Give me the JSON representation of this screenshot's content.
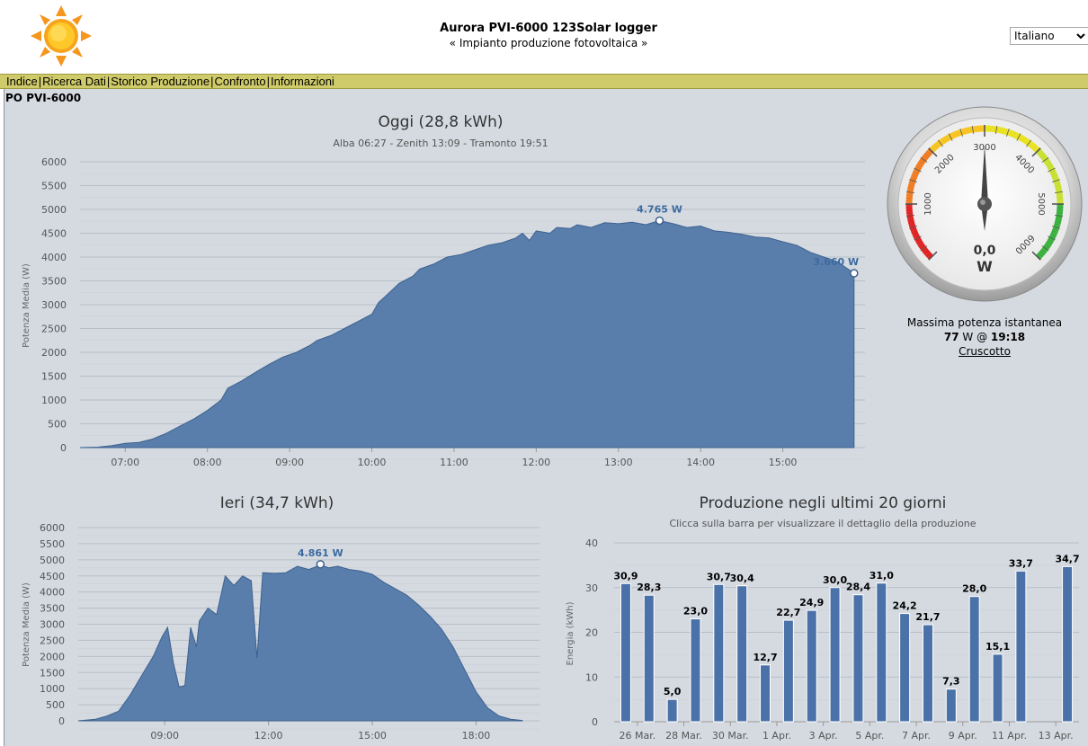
{
  "header": {
    "title": "Aurora PVI-6000 123Solar logger",
    "subtitle": "« Impianto produzione fotovoltaica »",
    "language": "Italiano"
  },
  "menu": {
    "items": [
      "Indice",
      "Ricerca Dati",
      "Storico Produzione",
      "Confronto",
      "Informazioni"
    ]
  },
  "section_title": "PO PVI-6000",
  "gauge": {
    "ticks": [
      "1000",
      "2000",
      "3000",
      "4000",
      "5000",
      "6000"
    ],
    "value": "0,0",
    "unit": "W",
    "value_w": 0,
    "max_w": 6000,
    "max_label": "Massima potenza istantanea",
    "max_value": "77",
    "max_unit": "W @",
    "max_time": "19:18",
    "link": "Cruscotto"
  },
  "chart_data": [
    {
      "type": "area",
      "title": "Oggi (28,8 kWh)",
      "subtitle": "Alba 06:27 - Zenith 13:09 - Tramonto 19:51",
      "ylabel": "Potenza Media (W)",
      "xlabel": "",
      "ylim": [
        0,
        6000
      ],
      "yticks": [
        "0",
        "500",
        "1000",
        "1500",
        "2000",
        "2500",
        "3000",
        "3500",
        "4000",
        "4500",
        "5000",
        "5500",
        "6000"
      ],
      "xticks": [
        "07:00",
        "08:00",
        "09:00",
        "10:00",
        "11:00",
        "12:00",
        "13:00",
        "14:00",
        "15:00"
      ],
      "x_start": "06:27",
      "x_end": "16:00",
      "points": [
        [
          "06:27",
          0
        ],
        [
          "06:40",
          10
        ],
        [
          "06:50",
          40
        ],
        [
          "07:00",
          90
        ],
        [
          "07:10",
          110
        ],
        [
          "07:20",
          180
        ],
        [
          "07:30",
          300
        ],
        [
          "07:40",
          450
        ],
        [
          "07:50",
          600
        ],
        [
          "08:00",
          780
        ],
        [
          "08:10",
          1000
        ],
        [
          "08:15",
          1250
        ],
        [
          "08:25",
          1400
        ],
        [
          "08:35",
          1580
        ],
        [
          "08:45",
          1750
        ],
        [
          "08:55",
          1900
        ],
        [
          "09:05",
          2000
        ],
        [
          "09:15",
          2150
        ],
        [
          "09:20",
          2250
        ],
        [
          "09:30",
          2350
        ],
        [
          "09:40",
          2500
        ],
        [
          "09:50",
          2650
        ],
        [
          "10:00",
          2800
        ],
        [
          "10:05",
          3050
        ],
        [
          "10:10",
          3180
        ],
        [
          "10:20",
          3450
        ],
        [
          "10:30",
          3600
        ],
        [
          "10:35",
          3750
        ],
        [
          "10:45",
          3850
        ],
        [
          "10:55",
          4000
        ],
        [
          "11:05",
          4050
        ],
        [
          "11:15",
          4150
        ],
        [
          "11:25",
          4250
        ],
        [
          "11:35",
          4300
        ],
        [
          "11:45",
          4400
        ],
        [
          "11:50",
          4500
        ],
        [
          "11:55",
          4350
        ],
        [
          "12:00",
          4550
        ],
        [
          "12:10",
          4500
        ],
        [
          "12:15",
          4620
        ],
        [
          "12:25",
          4600
        ],
        [
          "12:30",
          4680
        ],
        [
          "12:40",
          4620
        ],
        [
          "12:50",
          4720
        ],
        [
          "13:00",
          4700
        ],
        [
          "13:10",
          4730
        ],
        [
          "13:20",
          4680
        ],
        [
          "13:30",
          4765
        ],
        [
          "13:40",
          4700
        ],
        [
          "13:50",
          4620
        ],
        [
          "14:00",
          4650
        ],
        [
          "14:10",
          4550
        ],
        [
          "14:20",
          4520
        ],
        [
          "14:30",
          4480
        ],
        [
          "14:40",
          4420
        ],
        [
          "14:50",
          4400
        ],
        [
          "15:00",
          4320
        ],
        [
          "15:10",
          4250
        ],
        [
          "15:20",
          4100
        ],
        [
          "15:30",
          4000
        ],
        [
          "15:40",
          3900
        ],
        [
          "15:50",
          3700
        ],
        [
          "15:52",
          3660
        ]
      ],
      "highlights": [
        {
          "time": "13:30",
          "value": 4765,
          "label": "4.765 W"
        },
        {
          "time": "15:52",
          "value": 3660,
          "label": "3.660 W"
        }
      ]
    },
    {
      "type": "area",
      "title": "Ieri (34,7 kWh)",
      "ylabel": "Potenza Media (W)",
      "xlabel": "",
      "ylim": [
        0,
        6000
      ],
      "yticks": [
        "0",
        "500",
        "1000",
        "1500",
        "2000",
        "2500",
        "3000",
        "3500",
        "4000",
        "4500",
        "5000",
        "5500",
        "6000"
      ],
      "xticks": [
        "09:00",
        "12:00",
        "15:00",
        "18:00"
      ],
      "x_start": "06:30",
      "x_end": "19:50",
      "points": [
        [
          "06:30",
          0
        ],
        [
          "07:00",
          50
        ],
        [
          "07:20",
          150
        ],
        [
          "07:40",
          300
        ],
        [
          "08:00",
          800
        ],
        [
          "08:20",
          1400
        ],
        [
          "08:40",
          2000
        ],
        [
          "08:55",
          2600
        ],
        [
          "09:05",
          2900
        ],
        [
          "09:15",
          1800
        ],
        [
          "09:25",
          1050
        ],
        [
          "09:35",
          1100
        ],
        [
          "09:45",
          2900
        ],
        [
          "09:55",
          2300
        ],
        [
          "10:00",
          3100
        ],
        [
          "10:15",
          3500
        ],
        [
          "10:30",
          3300
        ],
        [
          "10:45",
          4500
        ],
        [
          "11:00",
          4200
        ],
        [
          "11:15",
          4500
        ],
        [
          "11:30",
          4350
        ],
        [
          "11:40",
          1950
        ],
        [
          "11:50",
          4600
        ],
        [
          "12:10",
          4580
        ],
        [
          "12:30",
          4600
        ],
        [
          "12:50",
          4800
        ],
        [
          "13:10",
          4700
        ],
        [
          "13:30",
          4840
        ],
        [
          "13:45",
          4750
        ],
        [
          "14:00",
          4800
        ],
        [
          "14:20",
          4700
        ],
        [
          "14:40",
          4650
        ],
        [
          "15:00",
          4550
        ],
        [
          "15:20",
          4300
        ],
        [
          "15:40",
          4100
        ],
        [
          "16:00",
          3900
        ],
        [
          "16:20",
          3600
        ],
        [
          "16:40",
          3250
        ],
        [
          "17:00",
          2850
        ],
        [
          "17:20",
          2300
        ],
        [
          "17:40",
          1600
        ],
        [
          "18:00",
          900
        ],
        [
          "18:20",
          400
        ],
        [
          "18:40",
          150
        ],
        [
          "19:00",
          50
        ],
        [
          "19:20",
          10
        ]
      ],
      "highlights": [
        {
          "time": "13:30",
          "value": 4861,
          "label": "4.861 W"
        }
      ]
    },
    {
      "type": "bar",
      "title": "Produzione negli ultimi 20 giorni",
      "subtitle": "Clicca sulla barra per visualizzare il dettaglio della produzione",
      "ylabel": "Energia (kWh)",
      "xlabel": "",
      "ylim": [
        0,
        40
      ],
      "yticks": [
        "0",
        "10",
        "20",
        "30",
        "40"
      ],
      "xticks": [
        "26 Mar.",
        "28 Mar.",
        "30 Mar.",
        "1 Apr.",
        "3 Apr.",
        "5 Apr.",
        "7 Apr.",
        "9 Apr.",
        "11 Apr.",
        "13 Apr."
      ],
      "values": [
        30.9,
        28.3,
        5.0,
        23.0,
        30.7,
        30.4,
        12.7,
        22.7,
        24.9,
        30.0,
        28.4,
        31.0,
        24.2,
        21.7,
        7.3,
        28.0,
        15.1,
        33.7,
        null,
        34.7
      ],
      "labels": [
        "30,9",
        "28,3",
        "5,0",
        "23,0",
        "30,7",
        "30,4",
        "12,7",
        "22,7",
        "24,9",
        "30,0",
        "28,4",
        "31,0",
        "24,2",
        "21,7",
        "7,3",
        "28,0",
        "15,1",
        "33,7",
        "",
        "34,7"
      ]
    }
  ]
}
